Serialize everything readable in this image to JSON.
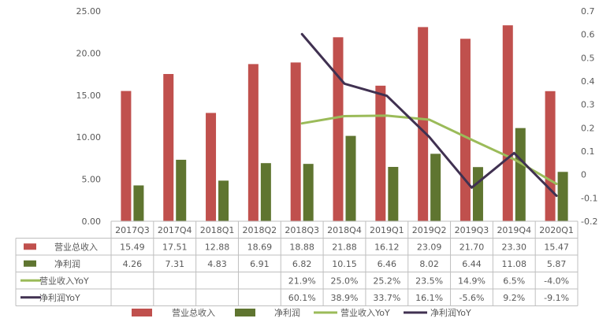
{
  "chart_data": {
    "type": "bar",
    "categories": [
      "2017Q3",
      "2017Q4",
      "2018Q1",
      "2018Q2",
      "2018Q3",
      "2018Q4",
      "2019Q1",
      "2019Q2",
      "2019Q3",
      "2019Q4",
      "2020Q1"
    ],
    "series": [
      {
        "name": "营业总收入",
        "kind": "bar",
        "axis": "left",
        "color": "#c0504d",
        "values": [
          15.49,
          17.51,
          12.88,
          18.69,
          18.88,
          21.88,
          16.12,
          23.09,
          21.7,
          23.3,
          15.47
        ],
        "labels": [
          "15.49",
          "17.51",
          "12.88",
          "18.69",
          "18.88",
          "21.88",
          "16.12",
          "23.09",
          "21.70",
          "23.30",
          "15.47"
        ]
      },
      {
        "name": "净利润",
        "kind": "bar",
        "axis": "left",
        "color": "#5f7530",
        "values": [
          4.26,
          7.31,
          4.83,
          6.91,
          6.82,
          10.15,
          6.46,
          8.02,
          6.44,
          11.08,
          5.87
        ],
        "labels": [
          "4.26",
          "7.31",
          "4.83",
          "6.91",
          "6.82",
          "10.15",
          "6.46",
          "8.02",
          "6.44",
          "11.08",
          "5.87"
        ]
      },
      {
        "name": "营业收入YoY",
        "kind": "line",
        "axis": "right",
        "color": "#9bbb59",
        "values": [
          null,
          null,
          null,
          null,
          0.219,
          0.25,
          0.252,
          0.235,
          0.149,
          0.065,
          -0.04
        ],
        "labels": [
          "",
          "",
          "",
          "",
          "21.9%",
          "25.0%",
          "25.2%",
          "23.5%",
          "14.9%",
          "6.5%",
          "-4.0%"
        ]
      },
      {
        "name": "净利润YoY",
        "kind": "line",
        "axis": "right",
        "color": "#403151",
        "values": [
          null,
          null,
          null,
          null,
          0.601,
          0.389,
          0.337,
          0.161,
          -0.056,
          0.092,
          -0.091
        ],
        "labels": [
          "",
          "",
          "",
          "",
          "60.1%",
          "38.9%",
          "33.7%",
          "16.1%",
          "-5.6%",
          "9.2%",
          "-9.1%"
        ]
      }
    ],
    "ylim_left": [
      0,
      25
    ],
    "yticks_left": [
      "0.00",
      "5.00",
      "10.00",
      "15.00",
      "20.00",
      "25.00"
    ],
    "ylim_right": [
      -0.2,
      0.7
    ],
    "yticks_right": [
      "-0.2",
      "-0.1",
      "0",
      "0.1",
      "0.2",
      "0.3",
      "0.4",
      "0.5",
      "0.6",
      "0.7"
    ],
    "grid": false,
    "legend_position": "bottom",
    "data_table": true
  }
}
